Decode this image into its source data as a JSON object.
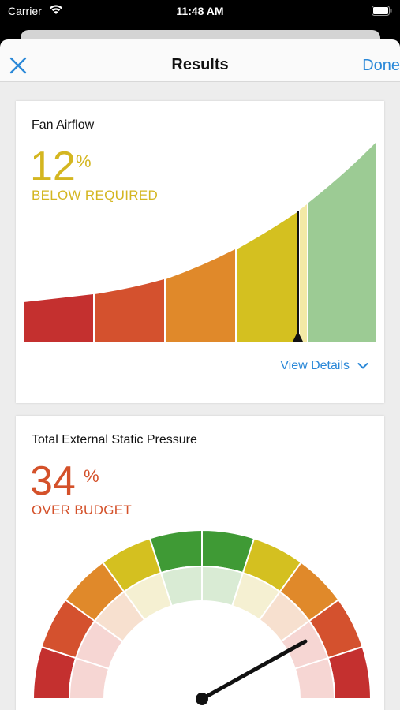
{
  "status_bar": {
    "carrier": "Carrier",
    "time": "11:48 AM"
  },
  "nav": {
    "title": "Results",
    "done_label": "Done"
  },
  "fan_airflow": {
    "title": "Fan Airflow",
    "value": "12",
    "unit": "%",
    "status": "BELOW REQUIRED",
    "color": "#d4b620",
    "details_label": "View Details",
    "needle_level": 0.77
  },
  "static_pressure": {
    "title": "Total External Static Pressure",
    "value": "34",
    "unit": "%",
    "status": "OVER BUDGET",
    "color": "#d4512a"
  },
  "colors": {
    "red": "#c4302f",
    "red_orange": "#d4512e",
    "orange": "#e0892a",
    "yellow": "#d4c020",
    "pale_yellow": "#f3e9a6",
    "green_light": "#9ccb94",
    "green": "#3f9a35",
    "accent_blue": "#2a88d8"
  }
}
